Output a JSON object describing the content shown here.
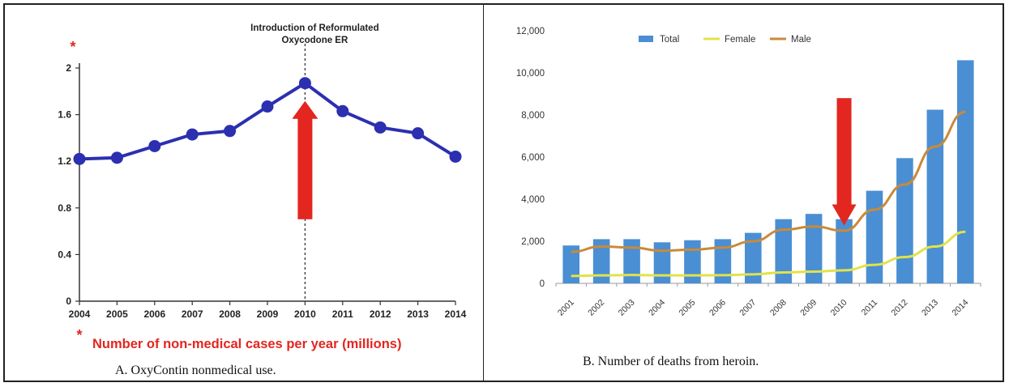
{
  "chart_data": [
    {
      "type": "line",
      "title": "Introduction of Reformulated Oxycodone ER",
      "title_lines": [
        "Introduction of Reformulated",
        "Oxycodone ER"
      ],
      "xlabel": "",
      "ylabel": "",
      "ylabel_marker": "*",
      "x": [
        "2004",
        "2005",
        "2006",
        "2007",
        "2008",
        "2009",
        "2010",
        "2011",
        "2012",
        "2013",
        "2014"
      ],
      "series": [
        {
          "name": "",
          "color": "#2b2fb0",
          "values": [
            1.22,
            1.23,
            1.33,
            1.43,
            1.46,
            1.67,
            1.87,
            1.63,
            1.49,
            1.44,
            1.24
          ]
        }
      ],
      "y_ticks": [
        "0",
        "0.4",
        "0.8",
        "1.2",
        "1.6",
        "2"
      ],
      "ylim": [
        0,
        2
      ],
      "reference_line_x": "2010",
      "arrow": {
        "direction": "up",
        "at_x": "2010",
        "color": "#e32620"
      },
      "footnote_marker": "*",
      "footnote": "Number of non-medical cases per year (millions)",
      "footnote_color": "#e32620",
      "caption": "A. OxyContin nonmedical use."
    },
    {
      "type": "bar",
      "categories": [
        "2001",
        "2002",
        "2003",
        "2004",
        "2005",
        "2006",
        "2007",
        "2008",
        "2009",
        "2010",
        "2011",
        "2012",
        "2013",
        "2014"
      ],
      "series": [
        {
          "name": "Total",
          "kind": "bar",
          "color": "#4a8fd3",
          "values": [
            1800,
            2100,
            2100,
            1950,
            2050,
            2100,
            2400,
            3050,
            3300,
            3050,
            4400,
            5950,
            8250,
            10600
          ]
        },
        {
          "name": "Female",
          "kind": "line",
          "color": "#e2e24a",
          "values": [
            350,
            380,
            400,
            380,
            380,
            390,
            430,
            520,
            560,
            620,
            880,
            1250,
            1750,
            2450
          ]
        },
        {
          "name": "Male",
          "kind": "line",
          "color": "#c98a3a",
          "values": [
            1500,
            1750,
            1700,
            1550,
            1600,
            1700,
            2000,
            2550,
            2700,
            2500,
            3500,
            4700,
            6500,
            8150
          ]
        }
      ],
      "y_ticks": [
        "0",
        "2,000",
        "4,000",
        "6,000",
        "8,000",
        "10,000",
        "12,000"
      ],
      "ylim": [
        0,
        12000
      ],
      "legend_position": "top",
      "arrow": {
        "direction": "down",
        "at_x": "2010",
        "color": "#e32620"
      },
      "caption": "B. Number of deaths from heroin."
    }
  ]
}
